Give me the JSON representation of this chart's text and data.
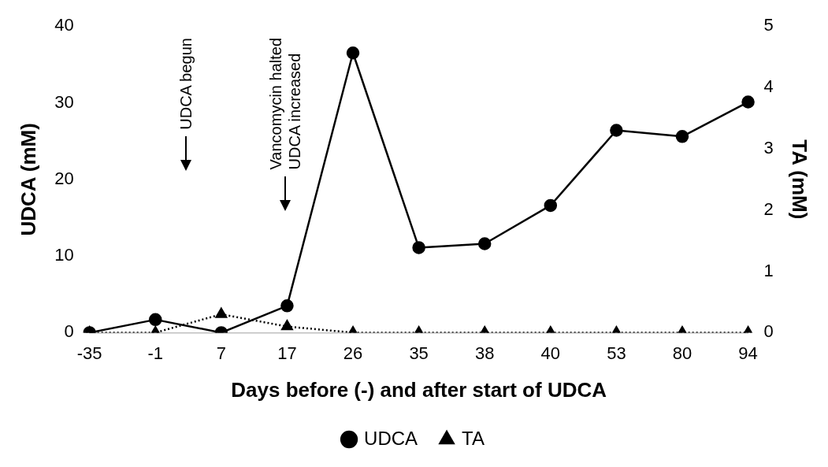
{
  "chart_data": {
    "type": "line",
    "xlabel": "Days before (-) and after start of UDCA",
    "ylabel": "UDCA (mM)",
    "y2label": "TA (mM)",
    "categories": [
      "-35",
      "-1",
      "7",
      "17",
      "26",
      "35",
      "38",
      "40",
      "53",
      "80",
      "94"
    ],
    "series": [
      {
        "name": "UDCA",
        "color": "#000000",
        "marker": "circle",
        "line_style": "solid",
        "values": [
          0,
          1.7,
          0,
          3.5,
          36.5,
          11.1,
          11.6,
          16.6,
          26.4,
          25.6,
          30.1
        ]
      },
      {
        "name": "TA",
        "color": "#000000",
        "marker": "triangle",
        "line_style": "dotted",
        "axis": "y2",
        "values": [
          0,
          0,
          0.3,
          0.1,
          0,
          0,
          0,
          0,
          0,
          0,
          0
        ]
      }
    ],
    "ylim": [
      0,
      40
    ],
    "yticks": [
      0,
      10,
      20,
      30,
      40
    ],
    "y2lim": [
      0,
      5
    ],
    "y2ticks": [
      0,
      1,
      2,
      3,
      4,
      5
    ],
    "grid": false,
    "legend": "bottom",
    "annotations": [
      "UDCA begun",
      "Vancomycin halted\nUDCA increased"
    ]
  }
}
